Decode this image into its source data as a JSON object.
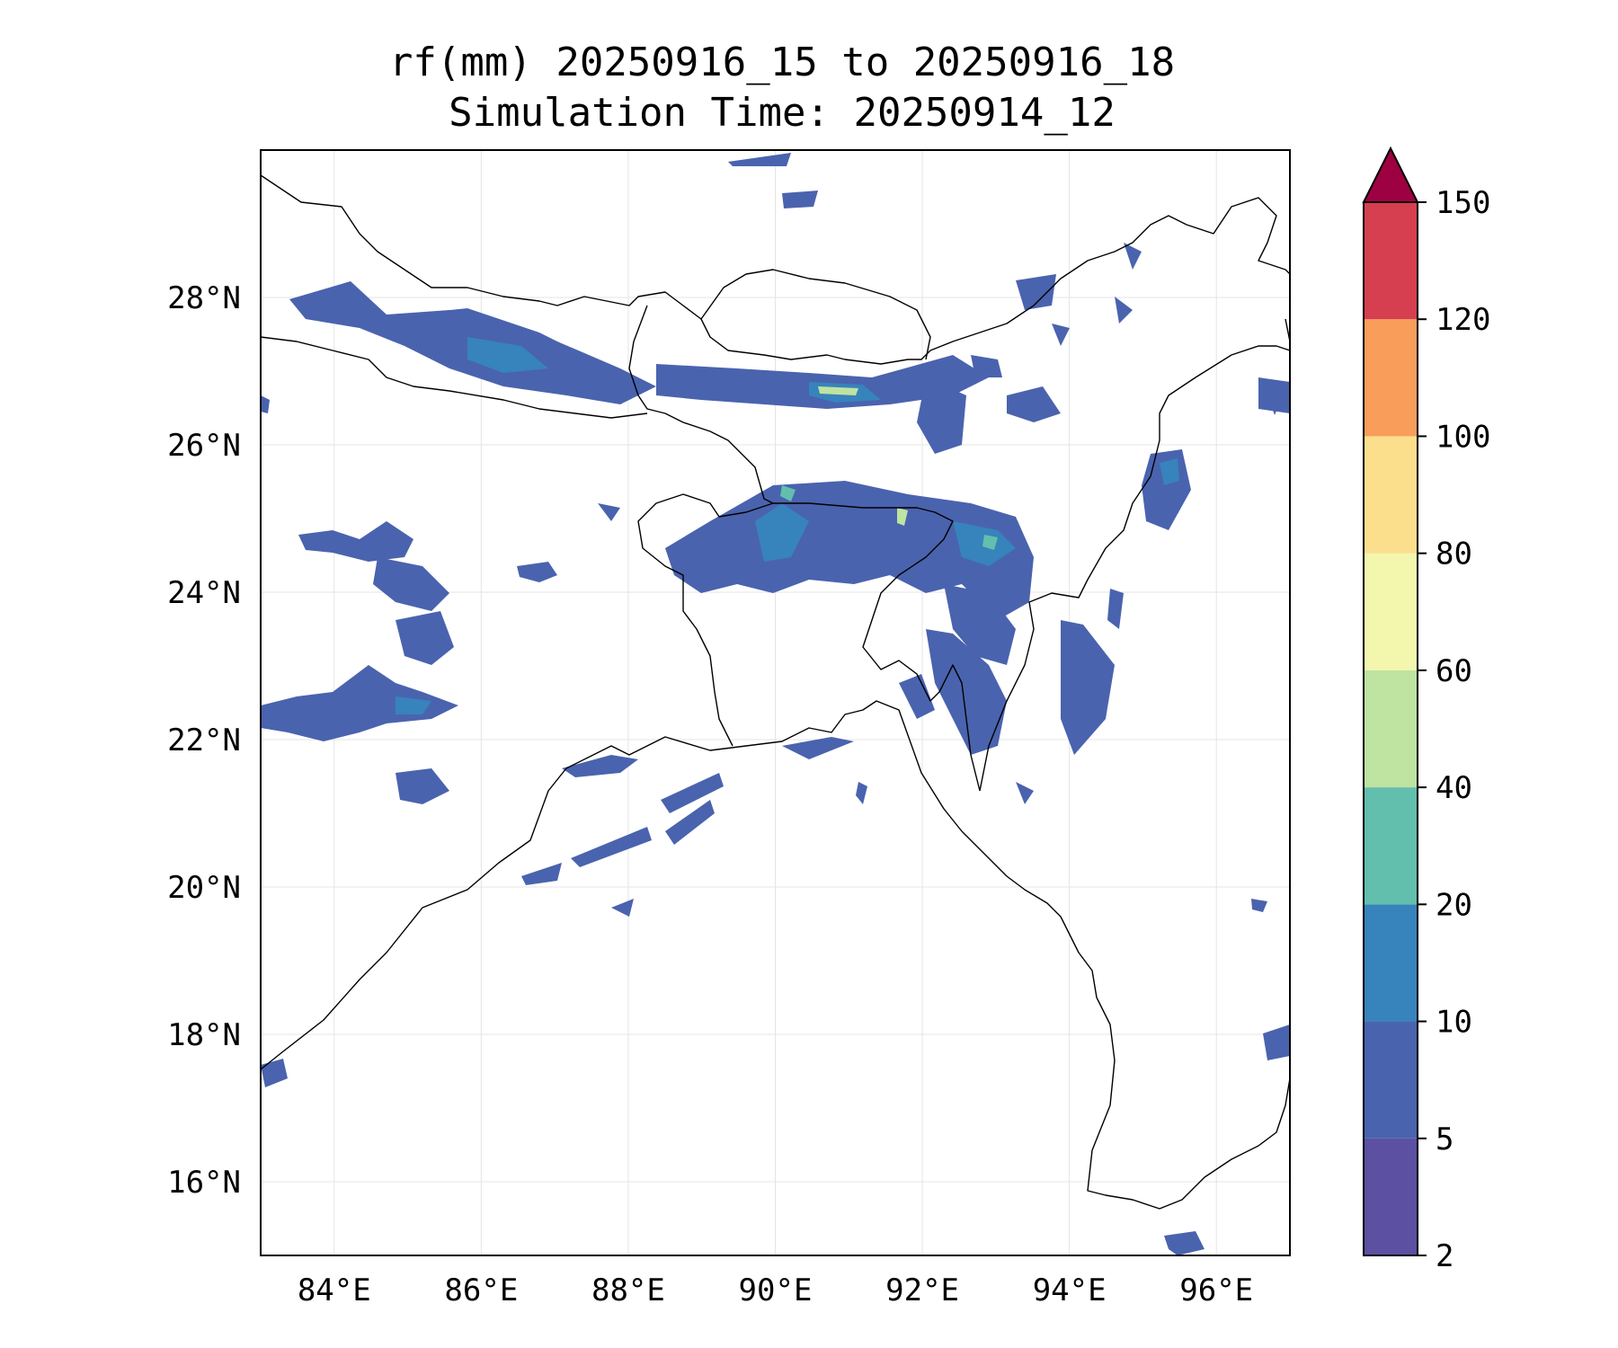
{
  "title": {
    "line1": "rf(mm) 20250916_15 to 20250916_18",
    "line2": "Simulation Time: 20250914_12"
  },
  "map": {
    "lon_range": [
      83,
      97
    ],
    "lat_range": [
      15,
      30
    ],
    "lon_ticks": [
      {
        "value": 84,
        "label": "84°E"
      },
      {
        "value": 86,
        "label": "86°E"
      },
      {
        "value": 88,
        "label": "88°E"
      },
      {
        "value": 90,
        "label": "90°E"
      },
      {
        "value": 92,
        "label": "92°E"
      },
      {
        "value": 94,
        "label": "94°E"
      },
      {
        "value": 96,
        "label": "96°E"
      }
    ],
    "lat_ticks": [
      {
        "value": 16,
        "label": "16°N"
      },
      {
        "value": 18,
        "label": "18°N"
      },
      {
        "value": 20,
        "label": "20°N"
      },
      {
        "value": 22,
        "label": "22°N"
      },
      {
        "value": 24,
        "label": "24°N"
      },
      {
        "value": 26,
        "label": "26°N"
      },
      {
        "value": 28,
        "label": "28°N"
      }
    ],
    "gridlines": true
  },
  "colorbar": {
    "extend": "max",
    "levels": [
      {
        "label": "2",
        "color": "#5b50a2"
      },
      {
        "label": "5",
        "color": "#4a63ae"
      },
      {
        "label": "10",
        "color": "#3783bc"
      },
      {
        "label": "20",
        "color": "#62bfad"
      },
      {
        "label": "40",
        "color": "#bfe3a0"
      },
      {
        "label": "60",
        "color": "#f3f7ae"
      },
      {
        "label": "80",
        "color": "#fcdf8d"
      },
      {
        "label": "100",
        "color": "#f89e5a"
      },
      {
        "label": "120",
        "color": "#d53f50"
      },
      {
        "label": "150",
        "color": "#9e0142"
      }
    ]
  }
}
